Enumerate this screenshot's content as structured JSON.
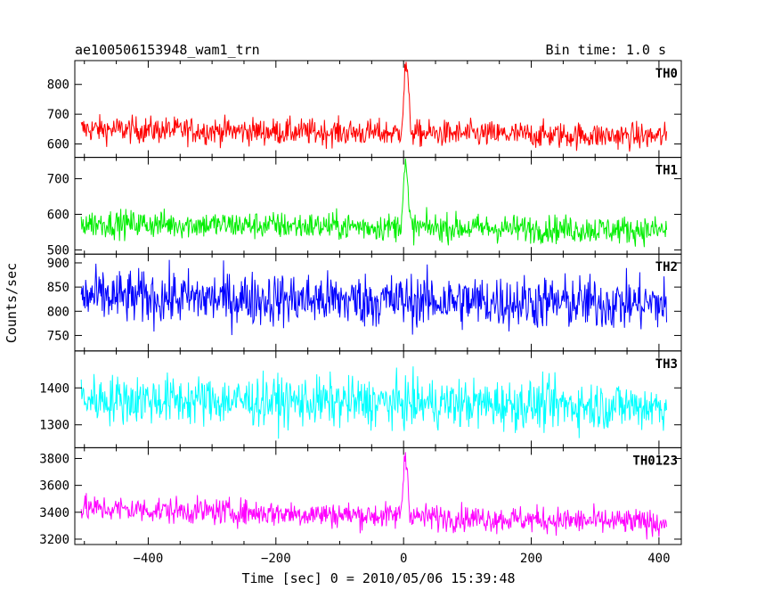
{
  "header": {
    "title": "ae100506153948_wam1_trn",
    "bin_time": "Bin time: 1.0 s"
  },
  "chart_data": {
    "type": "line",
    "title": "ae100506153948_wam1_trn",
    "subtitle": "Bin time: 1.0 s",
    "xlabel": "Time [sec] 0 = 2010/05/06 15:39:48",
    "ylabel": "Counts/sec",
    "xlim": [
      -515,
      435
    ],
    "x_range": [
      -505,
      412
    ],
    "x_step": 1.0,
    "xticks": [
      -400,
      -200,
      0,
      200,
      400
    ],
    "x_tick_labels": [
      "−400",
      "−200",
      "0",
      "200",
      "400"
    ],
    "panels": [
      {
        "name": "TH0",
        "color": "#ff0000",
        "ylim": [
          555,
          880
        ],
        "yticks": [
          600,
          700,
          800
        ],
        "baseline_start": 650,
        "baseline_end": 625,
        "noise": 32,
        "peak": {
          "x": 4,
          "value": 880,
          "width": 5
        }
      },
      {
        "name": "TH1",
        "color": "#00ee00",
        "ylim": [
          488,
          760
        ],
        "yticks": [
          500,
          600,
          700
        ],
        "baseline_start": 575,
        "baseline_end": 555,
        "noise": 28,
        "peak": {
          "x": 3,
          "value": 745,
          "width": 5
        }
      },
      {
        "name": "TH2",
        "color": "#0000ff",
        "ylim": [
          718,
          918
        ],
        "yticks": [
          750,
          800,
          850,
          900
        ],
        "baseline_start": 830,
        "baseline_end": 815,
        "noise": 40,
        "peak": null
      },
      {
        "name": "TH3",
        "color": "#00ffff",
        "ylim": [
          1238,
          1500
        ],
        "yticks": [
          1300,
          1400
        ],
        "baseline_start": 1370,
        "baseline_end": 1350,
        "noise": 48,
        "peak": null
      },
      {
        "name": "TH0123",
        "color": "#ff00ff",
        "ylim": [
          3160,
          3880
        ],
        "yticks": [
          3200,
          3400,
          3600,
          3800
        ],
        "baseline_start": 3430,
        "baseline_end": 3320,
        "noise": 70,
        "peak": {
          "x": 3,
          "value": 3880,
          "width": 5
        }
      }
    ]
  }
}
